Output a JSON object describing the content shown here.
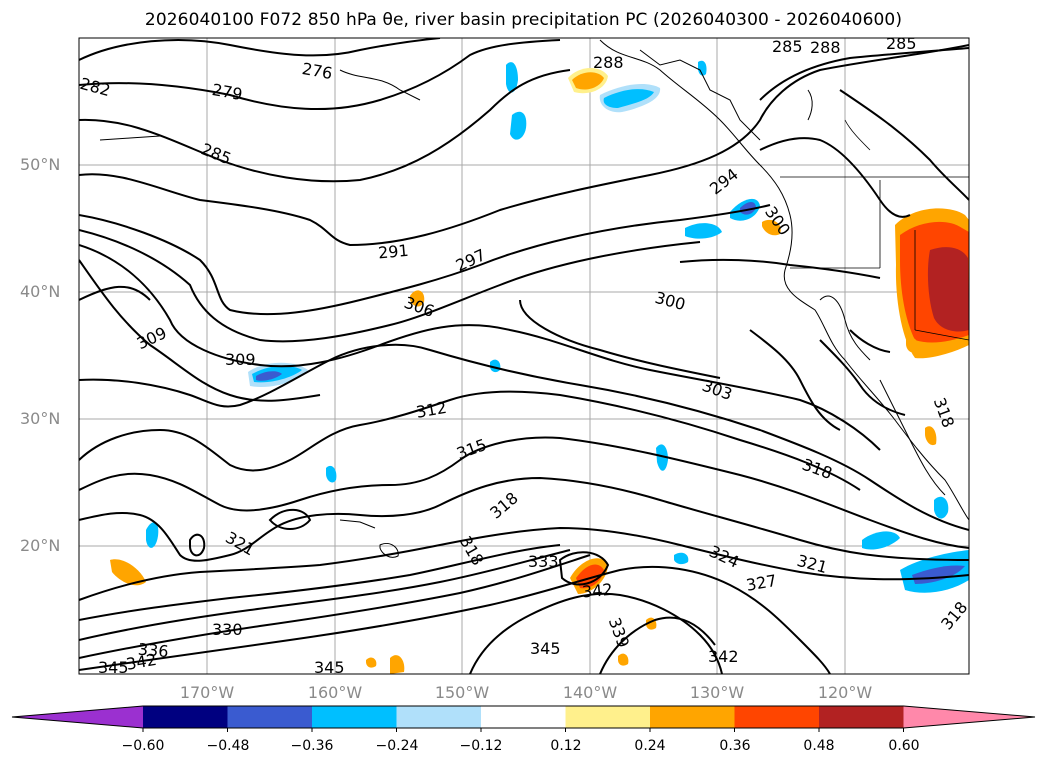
{
  "title": "2026040100 F072 850 hPa θe, river basin precipitation PC (2026040300 - 2026040600)",
  "lat_labels": [
    "50°N",
    "40°N",
    "30°N",
    "20°N"
  ],
  "lon_labels": [
    "170°W",
    "160°W",
    "150°W",
    "140°W",
    "130°W",
    "120°W"
  ],
  "colorbar": {
    "ticks": [
      "−0.60",
      "−0.48",
      "−0.36",
      "−0.24",
      "−0.12",
      "0.12",
      "0.24",
      "0.36",
      "0.48",
      "0.60"
    ],
    "colors": [
      "#9b30d0",
      "#000080",
      "#3a5bd0",
      "#00bfff",
      "#b0e0fa",
      "#ffffff",
      "#fff08c",
      "#ffa500",
      "#ff4500",
      "#b22222",
      "#ff88aa"
    ]
  },
  "contour_labels": [
    "276",
    "279",
    "282",
    "285",
    "285",
    "288",
    "288",
    "285",
    "291",
    "294",
    "297",
    "300",
    "300",
    "303",
    "306",
    "309",
    "309",
    "312",
    "315",
    "318",
    "318",
    "318",
    "318",
    "321",
    "321",
    "324",
    "327",
    "330",
    "333",
    "336",
    "339",
    "342",
    "342",
    "342",
    "345",
    "345",
    "345",
    "318"
  ]
}
